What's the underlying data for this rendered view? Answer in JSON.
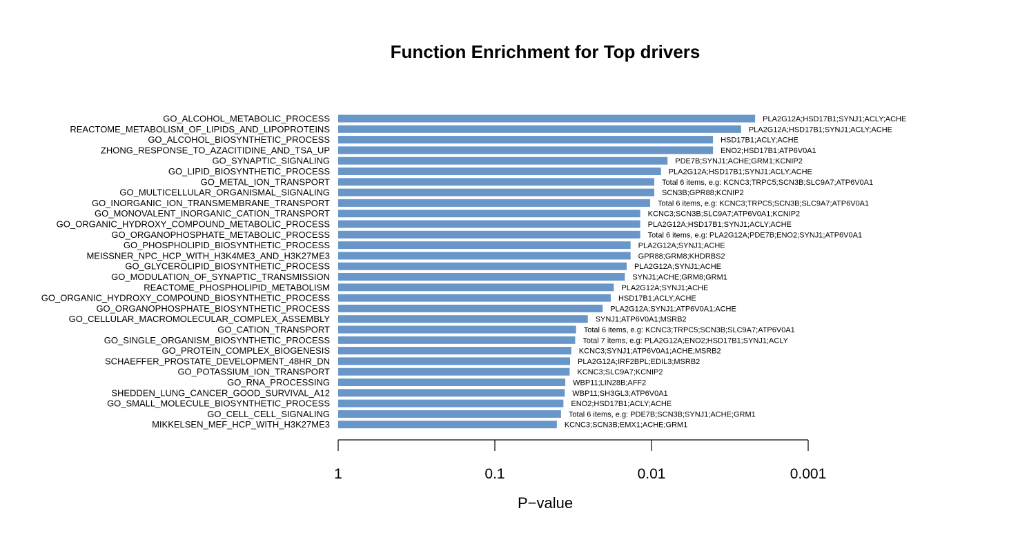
{
  "chart_data": {
    "type": "bar",
    "orientation": "horizontal",
    "title": "Function Enrichment for Top drivers",
    "xlabel": "P−value",
    "ylabel": "",
    "x_scale": "log-reversed",
    "x_ticks": [
      "1",
      "0.1",
      "0.01",
      "0.001"
    ],
    "xlim": [
      1,
      0.001
    ],
    "bar_color": "#6896c8",
    "grid": false,
    "categories": [
      "GO_ALCOHOL_METABOLIC_PROCESS",
      "REACTOME_METABOLISM_OF_LIPIDS_AND_LIPOPROTEINS",
      "GO_ALCOHOL_BIOSYNTHETIC_PROCESS",
      "ZHONG_RESPONSE_TO_AZACITIDINE_AND_TSA_UP",
      "GO_SYNAPTIC_SIGNALING",
      "GO_LIPID_BIOSYNTHETIC_PROCESS",
      "GO_METAL_ION_TRANSPORT",
      "GO_MULTICELLULAR_ORGANISMAL_SIGNALING",
      "GO_INORGANIC_ION_TRANSMEMBRANE_TRANSPORT",
      "GO_MONOVALENT_INORGANIC_CATION_TRANSPORT",
      "GO_ORGANIC_HYDROXY_COMPOUND_METABOLIC_PROCESS",
      "GO_ORGANOPHOSPHATE_METABOLIC_PROCESS",
      "GO_PHOSPHOLIPID_BIOSYNTHETIC_PROCESS",
      "MEISSNER_NPC_HCP_WITH_H3K4ME3_AND_H3K27ME3",
      "GO_GLYCEROLIPID_BIOSYNTHETIC_PROCESS",
      "GO_MODULATION_OF_SYNAPTIC_TRANSMISSION",
      "REACTOME_PHOSPHOLIPID_METABOLISM",
      "GO_ORGANIC_HYDROXY_COMPOUND_BIOSYNTHETIC_PROCESS",
      "GO_ORGANOPHOSPHATE_BIOSYNTHETIC_PROCESS",
      "GO_CELLULAR_MACROMOLECULAR_COMPLEX_ASSEMBLY",
      "GO_CATION_TRANSPORT",
      "GO_SINGLE_ORGANISM_BIOSYNTHETIC_PROCESS",
      "GO_PROTEIN_COMPLEX_BIOGENESIS",
      "SCHAEFFER_PROSTATE_DEVELOPMENT_48HR_DN",
      "GO_POTASSIUM_ION_TRANSPORT",
      "GO_RNA_PROCESSING",
      "SHEDDEN_LUNG_CANCER_GOOD_SURVIVAL_A12",
      "GO_SMALL_MOLECULE_BIOSYNTHETIC_PROCESS",
      "GO_CELL_CELL_SIGNALING",
      "MIKKELSEN_MEF_HCP_WITH_H3K27ME3"
    ],
    "values": [
      0.00218,
      0.00268,
      0.00405,
      0.00405,
      0.0079,
      0.0087,
      0.0096,
      0.0096,
      0.0102,
      0.0118,
      0.0118,
      0.0118,
      0.0136,
      0.0136,
      0.0144,
      0.0148,
      0.0174,
      0.0182,
      0.0205,
      0.0255,
      0.0303,
      0.0307,
      0.0325,
      0.0331,
      0.0333,
      0.0355,
      0.0358,
      0.0365,
      0.0378,
      0.0402
    ],
    "bar_labels": [
      "PLA2G12A;HSD17B1;SYNJ1;ACLY;ACHE",
      "PLA2G12A;HSD17B1;SYNJ1;ACLY;ACHE",
      "HSD17B1;ACLY;ACHE",
      "ENO2;HSD17B1;ATP6V0A1",
      "PDE7B;SYNJ1;ACHE;GRM1;KCNIP2",
      "PLA2G12A;HSD17B1;SYNJ1;ACLY;ACHE",
      "Total 6 items, e.g: KCNC3;TRPC5;SCN3B;SLC9A7;ATP6V0A1",
      "SCN3B;GPR88;KCNIP2",
      "Total 6 items, e.g: KCNC3;TRPC5;SCN3B;SLC9A7;ATP6V0A1",
      "KCNC3;SCN3B;SLC9A7;ATP6V0A1;KCNIP2",
      "PLA2G12A;HSD17B1;SYNJ1;ACLY;ACHE",
      "Total 6 items, e.g: PLA2G12A;PDE7B;ENO2;SYNJ1;ATP6V0A1",
      "PLA2G12A;SYNJ1;ACHE",
      "GPR88;GRM8;KHDRBS2",
      "PLA2G12A;SYNJ1;ACHE",
      "SYNJ1;ACHE;GRM8;GRM1",
      "PLA2G12A;SYNJ1;ACHE",
      "HSD17B1;ACLY;ACHE",
      "PLA2G12A;SYNJ1;ATP6V0A1;ACHE",
      "SYNJ1;ATP6V0A1;MSRB2",
      "Total 6 items, e.g: KCNC3;TRPC5;SCN3B;SLC9A7;ATP6V0A1",
      "Total 7 items, e.g: PLA2G12A;ENO2;HSD17B1;SYNJ1;ACLY",
      "KCNC3;SYNJ1;ATP6V0A1;ACHE;MSRB2",
      "PLA2G12A;IRF2BPL;EDIL3;MSRB2",
      "KCNC3;SLC9A7;KCNIP2",
      "WBP11;LIN28B;AFF2",
      "WBP11;SH3GL3;ATP6V0A1",
      "ENO2;HSD17B1;ACLY;ACHE",
      "Total 6 items, e.g: PDE7B;SCN3B;SYNJ1;ACHE;GRM1",
      "KCNC3;SCN3B;EMX1;ACHE;GRM1"
    ]
  }
}
